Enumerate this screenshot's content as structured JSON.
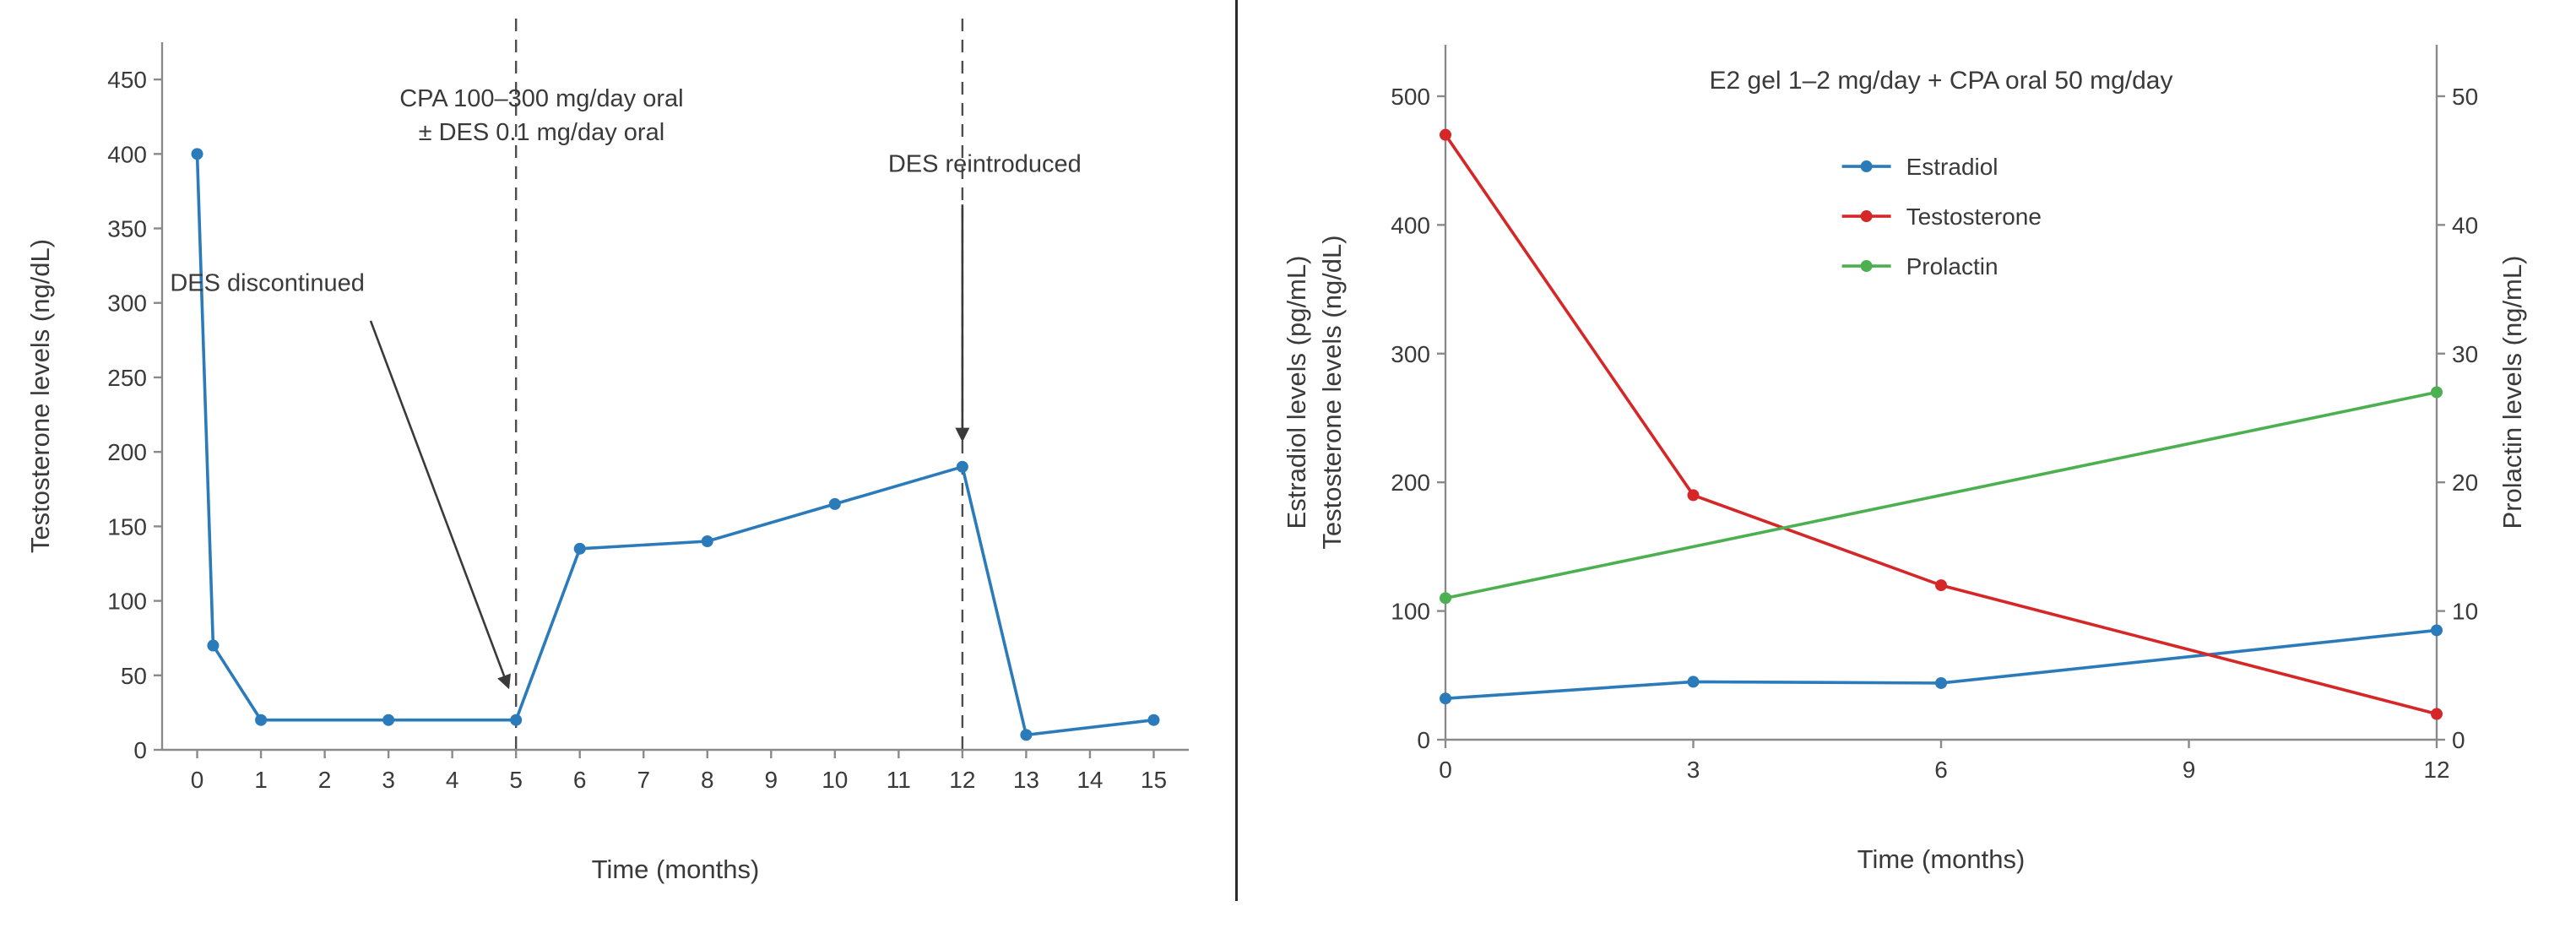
{
  "colors": {
    "blue": "#2b7bba",
    "red": "#d62728",
    "green": "#4caf50",
    "text": "#3a3a3a",
    "axis": "#8a8a8a",
    "dashed": "#4d4d4d"
  },
  "chart_data": [
    {
      "type": "line",
      "title": "",
      "xlabel": "Time (months)",
      "ylabel": "Testosterone levels (ng/dL)",
      "xlim": [
        -0.55,
        15.55
      ],
      "ylim": [
        0,
        475
      ],
      "xticks": [
        0,
        1,
        2,
        3,
        4,
        5,
        6,
        7,
        8,
        9,
        10,
        11,
        12,
        13,
        14,
        15
      ],
      "yticks": [
        0,
        50,
        100,
        150,
        200,
        250,
        300,
        350,
        400,
        450
      ],
      "grid": false,
      "vlines": [
        {
          "x": 5,
          "style": "dashed"
        },
        {
          "x": 12,
          "style": "dashed"
        }
      ],
      "series": [
        {
          "name": "Testosterone",
          "color_key": "blue",
          "x": [
            0,
            0.25,
            1,
            3,
            5,
            6,
            8,
            10,
            12,
            13,
            15
          ],
          "y": [
            400,
            70,
            20,
            20,
            20,
            135,
            140,
            165,
            190,
            10,
            20
          ]
        }
      ],
      "annotations": [
        {
          "text": "CPA 100–300 mg/day oral\n± DES 0.1 mg/day oral",
          "x": 5.4,
          "y": 432,
          "arrow": null
        },
        {
          "text": "DES discontinued",
          "x": 1.1,
          "y": 308,
          "arrow": {
            "from": [
              2.72,
              288
            ],
            "to": [
              4.88,
              42
            ]
          }
        },
        {
          "text": "DES reintroduced",
          "x": 12.35,
          "y": 388,
          "arrow": {
            "from": [
              12,
              366
            ],
            "to": [
              12,
              208
            ]
          }
        }
      ]
    },
    {
      "type": "line",
      "title": "E2 gel 1–2 mg/day + CPA oral 50 mg/day",
      "xlabel": "Time (months)",
      "ylabel": "Estradiol levels (pg/mL)\nTestosterone levels (ng/dL)",
      "ylabel_right": "Prolactin levels (ng/mL)",
      "xlim": [
        0,
        12
      ],
      "ylim": [
        0,
        540
      ],
      "ylim_right": [
        0,
        54
      ],
      "xticks": [
        0,
        3,
        6,
        9,
        12
      ],
      "yticks": [
        0,
        100,
        200,
        300,
        400,
        500
      ],
      "yticks_right": [
        0,
        10,
        20,
        30,
        40,
        50
      ],
      "grid": false,
      "series": [
        {
          "name": "Estradiol",
          "color_key": "blue",
          "axis": "left",
          "x": [
            0,
            3,
            6,
            12
          ],
          "y": [
            32,
            45,
            44,
            85
          ]
        },
        {
          "name": "Testosterone",
          "color_key": "red",
          "axis": "left",
          "x": [
            0,
            3,
            6,
            12
          ],
          "y": [
            470,
            190,
            120,
            20
          ]
        },
        {
          "name": "Prolactin",
          "color_key": "green",
          "axis": "right",
          "x": [
            0,
            12
          ],
          "y": [
            11,
            27
          ]
        }
      ],
      "legend": {
        "items": [
          "Estradiol",
          "Testosterone",
          "Prolactin"
        ],
        "position": "upper-center"
      }
    }
  ]
}
